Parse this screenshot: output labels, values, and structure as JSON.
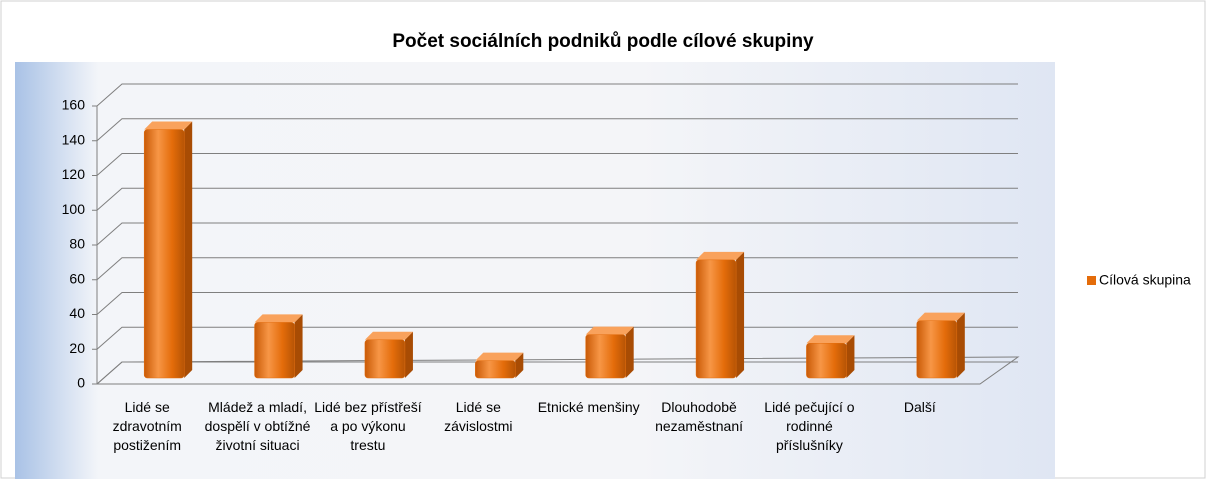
{
  "chart_data": {
    "type": "bar3d",
    "title": "Počet sociálních podniků podle cílové skupiny",
    "categories": [
      "Lidé se zdravotním postižením",
      "Mládež a mladí, dospělí v obtížné životní situaci",
      "Lidé bez přístřeší a po výkonu trestu",
      "Lidé se závislostmi",
      "Etnické menšiny",
      "Dlouhodobě nezaměstnaní",
      "Lidé pečující o rodinné příslušníky",
      "Další"
    ],
    "series": [
      {
        "name": "Cílová skupina",
        "color": "#e46c0a",
        "values": [
          143,
          32,
          22,
          10,
          25,
          68,
          20,
          33
        ]
      }
    ],
    "ylim": [
      0,
      160
    ],
    "yticks": [
      0,
      20,
      40,
      60,
      80,
      100,
      120,
      140,
      160
    ],
    "grid": true,
    "legend": "right"
  }
}
